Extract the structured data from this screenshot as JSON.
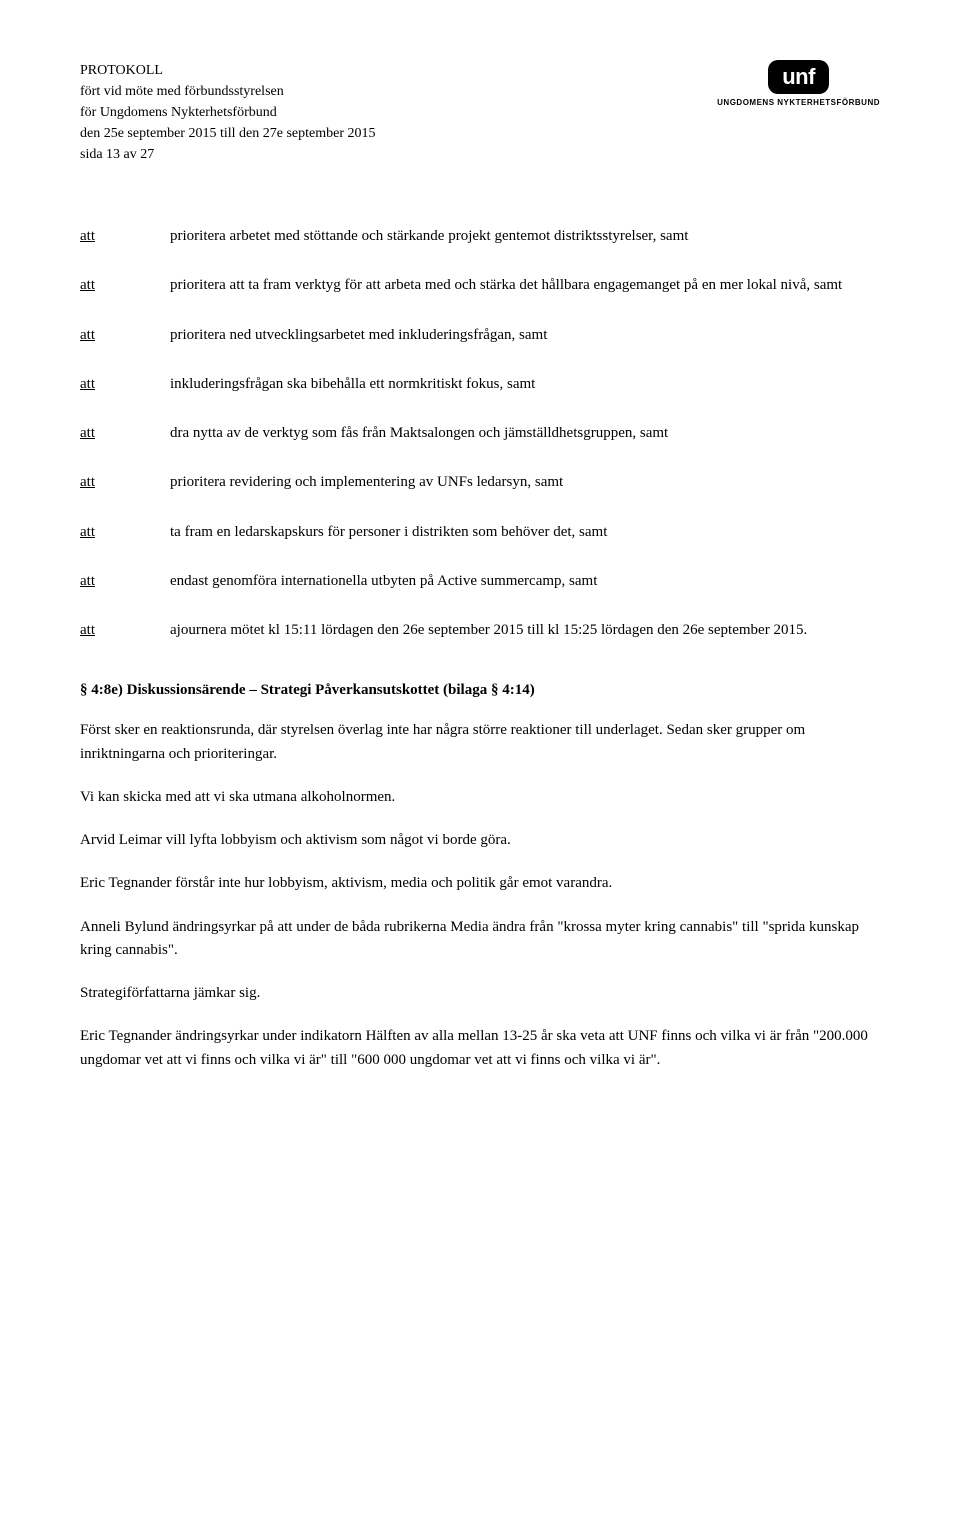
{
  "header": {
    "line1": "PROTOKOLL",
    "line2": "fört vid möte med förbundsstyrelsen",
    "line3": "för Ungdomens Nykterhetsförbund",
    "line4": "den 25e september 2015 till den 27e september 2015",
    "line5": "sida 13 av 27"
  },
  "logo": {
    "text": "unf",
    "subtitle": "UNGDOMENS NYKTERHETSFÖRBUND"
  },
  "att_items": [
    {
      "label": "att",
      "text": "prioritera arbetet med stöttande och stärkande projekt gentemot distriktsstyrelser, samt"
    },
    {
      "label": "att",
      "text": "prioritera att ta fram verktyg för att arbeta med och stärka det hållbara engagemanget på en mer lokal nivå, samt"
    },
    {
      "label": "att",
      "text": "prioritera ned utvecklingsarbetet med inkluderingsfrågan, samt"
    },
    {
      "label": "att",
      "text": "inkluderingsfrågan ska bibehålla ett normkritiskt fokus, samt"
    },
    {
      "label": "att",
      "text": "dra nytta av de verktyg som fås från Maktsalongen och jämställdhetsgruppen, samt"
    },
    {
      "label": "att",
      "text": "prioritera revidering och implementering av UNFs ledarsyn, samt"
    },
    {
      "label": "att",
      "text": "ta fram en ledarskapskurs för personer i distrikten som behöver det, samt"
    },
    {
      "label": "att",
      "text": "endast genomföra internationella utbyten på Active summercamp, samt"
    },
    {
      "label": "att",
      "text": "ajournera mötet kl 15:11 lördagen den 26e september 2015 till kl 15:25 lördagen den 26e september 2015."
    }
  ],
  "section": {
    "heading": "§ 4:8e) Diskussionsärende – Strategi Påverkansutskottet (bilaga § 4:14)",
    "paragraphs": [
      "Först sker en reaktionsrunda, där styrelsen överlag inte har några större reaktioner till underlaget. Sedan sker grupper om inriktningarna och prioriteringar.",
      "Vi kan skicka med att vi ska utmana alkoholnormen.",
      "Arvid Leimar vill lyfta lobbyism och aktivism som något vi borde göra.",
      "Eric Tegnander förstår inte hur lobbyism, aktivism, media och politik går emot varandra.",
      "Anneli Bylund ändringsyrkar på att under de båda rubrikerna Media ändra från \"krossa myter kring cannabis\" till \"sprida kunskap kring cannabis\".",
      "Strategiförfattarna jämkar sig.",
      "Eric Tegnander ändringsyrkar under indikatorn Hälften av alla mellan 13-25 år ska veta att UNF finns och vilka vi är från \"200.000 ungdomar vet att vi finns och vilka vi är\" till \"600 000 ungdomar vet att vi finns och vilka vi är\"."
    ]
  },
  "colors": {
    "background": "#ffffff",
    "text": "#000000",
    "logo_bg": "#000000",
    "logo_fg": "#ffffff"
  }
}
